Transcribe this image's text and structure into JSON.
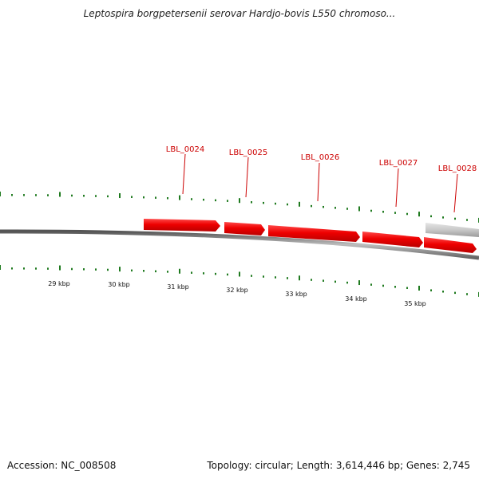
{
  "title": "Leptospira borgpetersenii serovar Hardjo-bovis L550 chromoso...",
  "accession_label": "Accession: NC_008508",
  "topology_label": "Topology: circular; Length: 3,614,446 bp; Genes: 2,745",
  "colors": {
    "gene_forward": "#ee0000",
    "gene_other": "#c8c8c8",
    "backbone": "#7a7a7a",
    "tick": "#1f7a1f",
    "label": "#cc0000"
  },
  "ruler": {
    "unit": "kbp",
    "labels": [
      "29 kbp",
      "30 kbp",
      "31 kbp",
      "32 kbp",
      "33 kbp",
      "34 kbp",
      "35 kbp"
    ]
  },
  "genes": [
    {
      "name": "LBL_0024",
      "color": "gene_forward"
    },
    {
      "name": "LBL_0025",
      "color": "gene_forward"
    },
    {
      "name": "LBL_0026",
      "color": "gene_forward"
    },
    {
      "name": "LBL_0027",
      "color": "gene_forward"
    },
    {
      "name": "LBL_0028",
      "color": "gene_forward"
    },
    {
      "name": "",
      "color": "gene_other"
    }
  ]
}
